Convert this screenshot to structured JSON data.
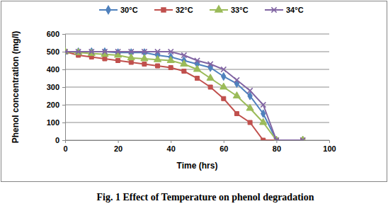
{
  "chart_data": {
    "type": "line",
    "title": "Fig. 1 Effect of Temperature on phenol degradation",
    "x_label": "Time (hrs)",
    "y_label": "Phenol concentration (mg/l)",
    "x": [
      0,
      5,
      10,
      15,
      20,
      25,
      30,
      35,
      40,
      45,
      50,
      55,
      60,
      65,
      70,
      75,
      80,
      90
    ],
    "series": [
      {
        "name": "30°C",
        "color": "#4F81BD",
        "marker": "diamond",
        "values": [
          500,
          500,
          500,
          500,
          495,
          495,
          495,
          480,
          470,
          450,
          430,
          410,
          360,
          320,
          250,
          150,
          0,
          0
        ]
      },
      {
        "name": "32°C",
        "color": "#C0504D",
        "marker": "square",
        "values": [
          500,
          480,
          470,
          460,
          450,
          440,
          430,
          420,
          410,
          390,
          350,
          300,
          235,
          150,
          100,
          0,
          0,
          0
        ]
      },
      {
        "name": "33°C",
        "color": "#9BBB59",
        "marker": "triangle",
        "values": [
          500,
          495,
          490,
          485,
          480,
          465,
          460,
          455,
          450,
          430,
          400,
          350,
          300,
          250,
          180,
          100,
          0,
          0
        ]
      },
      {
        "name": "34°C",
        "color": "#8064A2",
        "marker": "x",
        "values": [
          500,
          500,
          500,
          500,
          500,
          500,
          500,
          500,
          500,
          480,
          450,
          430,
          400,
          340,
          280,
          200,
          0,
          0
        ]
      }
    ],
    "xlim": [
      0,
      100
    ],
    "xticks": [
      0,
      20,
      40,
      60,
      80,
      100
    ],
    "ylim": [
      0,
      600
    ],
    "yticks": [
      0,
      100,
      200,
      300,
      400,
      500,
      600
    ],
    "grid": true,
    "legend": "top"
  }
}
